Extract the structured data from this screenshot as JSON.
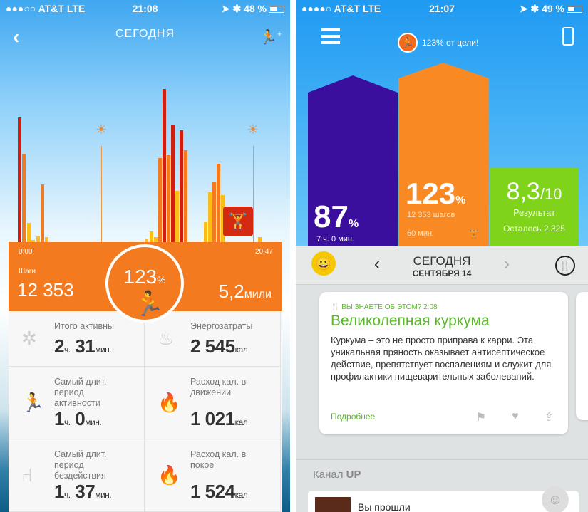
{
  "left": {
    "status": {
      "carrier": "●●●○○ AT&T  LTE",
      "time": "21:08",
      "battery": "48 %",
      "battery_level": 0.48
    },
    "header": {
      "title": "СЕГОДНЯ"
    },
    "timeline": {
      "start": "0:00",
      "end": "20:47"
    },
    "summary": {
      "steps_label": "Шаги",
      "steps": "12 353",
      "percent": "123",
      "percent_sign": "%",
      "distance": "5,2",
      "distance_unit": "мили"
    },
    "stats": [
      {
        "label": "Итого активны",
        "v1": "2",
        "u1": "ч.",
        "v2": " 31",
        "u2": "мин.",
        "icon": "activity-icon"
      },
      {
        "label": "Энергозатраты",
        "v1": "2 545",
        "u1": "кал",
        "icon": "flames-icon"
      },
      {
        "label": "Самый длит. период активности",
        "v1": "1",
        "u1": "ч.",
        "v2": " 0",
        "u2": "мин.",
        "icon": "runner-icon"
      },
      {
        "label": "Расход кал. в движении",
        "v1": "1 021",
        "u1": "кал",
        "icon": "flame-icon"
      },
      {
        "label": "Самый длит. период бездействия",
        "v1": "1",
        "u1": "ч.",
        "v2": " 37",
        "u2": "мин.",
        "icon": "chair-icon"
      },
      {
        "label": "Расход кал. в покое",
        "v1": "1 524",
        "u1": "кал",
        "icon": "flame-icon"
      }
    ],
    "colors": {
      "orange": "#f47a1f",
      "red": "#cf1f10",
      "yellow": "#fbbd17"
    }
  },
  "right": {
    "status": {
      "carrier": "●●●●○ AT&T  LTE",
      "time": "21:07",
      "battery": "49 %",
      "battery_level": 0.49
    },
    "goal": "123% от цели!",
    "sleep": {
      "value": "87",
      "unit": "%",
      "sub": "7 ч. 0 мин."
    },
    "move": {
      "value": "123",
      "unit": "%",
      "sub": "12 353 шагов",
      "workout": "60 мин."
    },
    "food": {
      "value": "8,3",
      "unit": "/10",
      "label": "Результат",
      "sub": "Осталось 2 325"
    },
    "date": {
      "title": "СЕГОДНЯ",
      "sub": "СЕНТЯБРЯ 14"
    },
    "card": {
      "tag": "ВЫ ЗНАЕТЕ ОБ ЭТОМ?",
      "time": "2:08",
      "title": "Великолепная куркума",
      "body": "Куркума – это не просто приправа к карри. Эта уникальная пряность оказывает антисептическое действие, препятствует воспалениям и служит для профилактики пищеварительных заболеваний.",
      "more": "Подробнее"
    },
    "feed": {
      "title": "Канал",
      "title_bold": "UP",
      "item": "Вы прошли"
    },
    "colors": {
      "sky": "#2aa3f2",
      "purple": "#3a0f9e",
      "orange": "#f98a23",
      "green": "#7fd31b",
      "accent": "#5cb82e"
    }
  }
}
